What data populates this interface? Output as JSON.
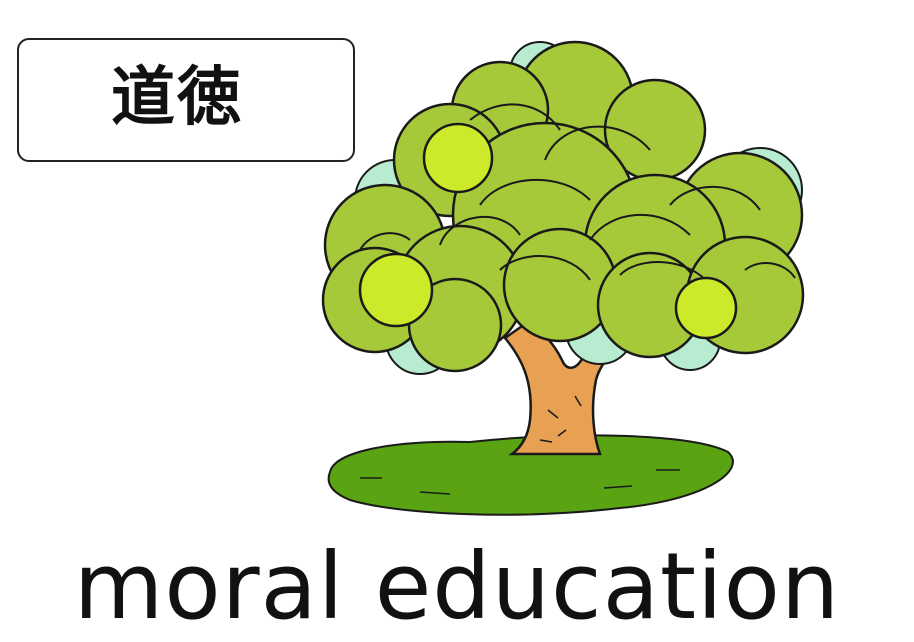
{
  "card": {
    "kanji": "道徳",
    "english": "moral education"
  },
  "illustration": {
    "icon": "tree-icon",
    "colors": {
      "foliage": "#a6c93a",
      "foliage_highlight": "#cdea2a",
      "foliage_shadow": "#b8ecd0",
      "trunk": "#e8a052",
      "grass": "#5aa414",
      "outline": "#1a1a1a"
    }
  }
}
